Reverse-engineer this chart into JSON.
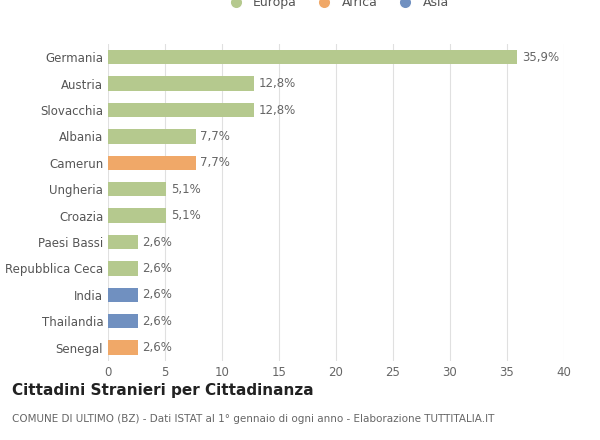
{
  "categories": [
    "Germania",
    "Austria",
    "Slovacchia",
    "Albania",
    "Camerun",
    "Ungheria",
    "Croazia",
    "Paesi Bassi",
    "Repubblica Ceca",
    "India",
    "Thailandia",
    "Senegal"
  ],
  "values": [
    35.9,
    12.8,
    12.8,
    7.7,
    7.7,
    5.1,
    5.1,
    2.6,
    2.6,
    2.6,
    2.6,
    2.6
  ],
  "labels": [
    "35,9%",
    "12,8%",
    "12,8%",
    "7,7%",
    "7,7%",
    "5,1%",
    "5,1%",
    "2,6%",
    "2,6%",
    "2,6%",
    "2,6%",
    "2,6%"
  ],
  "continents": [
    "Europa",
    "Europa",
    "Europa",
    "Europa",
    "Africa",
    "Europa",
    "Europa",
    "Europa",
    "Europa",
    "Asia",
    "Asia",
    "Africa"
  ],
  "colors": {
    "Europa": "#b5c98e",
    "Africa": "#f0a868",
    "Asia": "#7090c0"
  },
  "legend_items": [
    "Europa",
    "Africa",
    "Asia"
  ],
  "xlim": [
    0,
    40
  ],
  "xticks": [
    0,
    5,
    10,
    15,
    20,
    25,
    30,
    35,
    40
  ],
  "title": "Cittadini Stranieri per Cittadinanza",
  "subtitle": "COMUNE DI ULTIMO (BZ) - Dati ISTAT al 1° gennaio di ogni anno - Elaborazione TUTTITALIA.IT",
  "background_color": "#ffffff",
  "grid_color": "#e0e0e0",
  "bar_height": 0.55,
  "label_fontsize": 8.5,
  "tick_fontsize": 8.5,
  "title_fontsize": 11,
  "subtitle_fontsize": 7.5
}
